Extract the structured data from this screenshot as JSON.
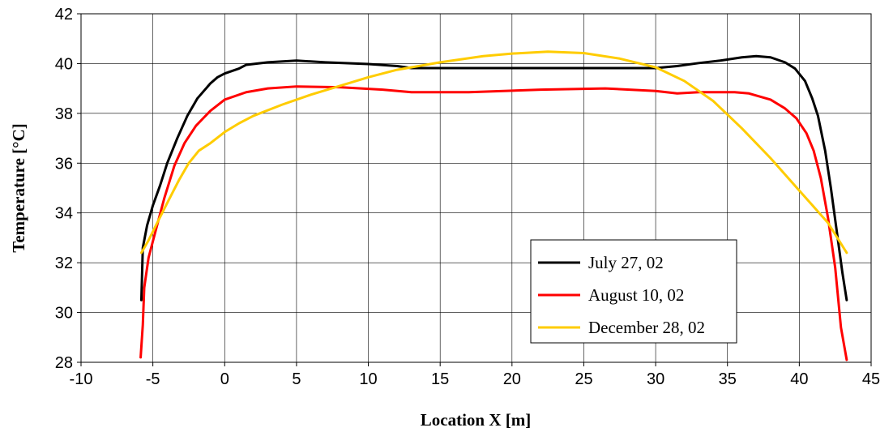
{
  "chart_data": {
    "type": "line",
    "xlabel": "Location X [m]",
    "ylabel": "Temperature [°C]",
    "xlim": [
      -10,
      45
    ],
    "ylim": [
      28,
      42
    ],
    "x_ticks": [
      -10,
      -5,
      0,
      5,
      10,
      15,
      20,
      25,
      30,
      35,
      40,
      45
    ],
    "y_ticks": [
      28,
      30,
      32,
      34,
      36,
      38,
      40,
      42
    ],
    "grid": true,
    "legend_position": "lower-right",
    "series": [
      {
        "name": "July 27, 02",
        "color": "#000000",
        "points": [
          [
            -5.8,
            30.5
          ],
          [
            -5.7,
            32.6
          ],
          [
            -5.4,
            33.5
          ],
          [
            -5.0,
            34.3
          ],
          [
            -4.5,
            35.1
          ],
          [
            -4.0,
            36.0
          ],
          [
            -3.3,
            37.0
          ],
          [
            -2.6,
            37.9
          ],
          [
            -1.9,
            38.6
          ],
          [
            -1.0,
            39.2
          ],
          [
            -0.5,
            39.45
          ],
          [
            0,
            39.6
          ],
          [
            1.0,
            39.8
          ],
          [
            1.5,
            39.95
          ],
          [
            3.0,
            40.05
          ],
          [
            5.0,
            40.12
          ],
          [
            7.0,
            40.05
          ],
          [
            10.0,
            39.98
          ],
          [
            12.0,
            39.9
          ],
          [
            13.0,
            39.82
          ],
          [
            20.0,
            39.82
          ],
          [
            25.0,
            39.82
          ],
          [
            30.0,
            39.82
          ],
          [
            31.5,
            39.9
          ],
          [
            33.0,
            40.02
          ],
          [
            34.5,
            40.12
          ],
          [
            36.0,
            40.25
          ],
          [
            37.0,
            40.3
          ],
          [
            38.0,
            40.25
          ],
          [
            39.0,
            40.05
          ],
          [
            39.7,
            39.8
          ],
          [
            40.4,
            39.3
          ],
          [
            40.9,
            38.6
          ],
          [
            41.3,
            37.9
          ],
          [
            41.8,
            36.5
          ],
          [
            42.2,
            35.0
          ],
          [
            42.6,
            33.3
          ],
          [
            43.0,
            31.6
          ],
          [
            43.3,
            30.5
          ]
        ]
      },
      {
        "name": "August 10, 02",
        "color": "#ff0000",
        "points": [
          [
            -5.85,
            28.2
          ],
          [
            -5.7,
            29.5
          ],
          [
            -5.6,
            31.0
          ],
          [
            -5.3,
            32.2
          ],
          [
            -4.8,
            33.3
          ],
          [
            -4.2,
            34.6
          ],
          [
            -3.5,
            35.9
          ],
          [
            -2.8,
            36.8
          ],
          [
            -2.0,
            37.5
          ],
          [
            -1.0,
            38.1
          ],
          [
            0,
            38.55
          ],
          [
            1.5,
            38.85
          ],
          [
            3.0,
            39.0
          ],
          [
            5.0,
            39.08
          ],
          [
            8.0,
            39.05
          ],
          [
            11.0,
            38.95
          ],
          [
            13.0,
            38.85
          ],
          [
            17.0,
            38.85
          ],
          [
            22.0,
            38.95
          ],
          [
            26.5,
            39.0
          ],
          [
            30.0,
            38.9
          ],
          [
            31.5,
            38.8
          ],
          [
            33.0,
            38.85
          ],
          [
            35.5,
            38.85
          ],
          [
            36.5,
            38.8
          ],
          [
            38.0,
            38.55
          ],
          [
            39.0,
            38.2
          ],
          [
            39.8,
            37.8
          ],
          [
            40.5,
            37.2
          ],
          [
            41.0,
            36.5
          ],
          [
            41.5,
            35.4
          ],
          [
            42.0,
            33.8
          ],
          [
            42.5,
            31.8
          ],
          [
            42.9,
            29.4
          ],
          [
            43.3,
            28.1
          ]
        ]
      },
      {
        "name": "December 28, 02",
        "color": "#ffcc00",
        "points": [
          [
            -5.8,
            32.4
          ],
          [
            -5.3,
            32.9
          ],
          [
            -4.7,
            33.6
          ],
          [
            -4.0,
            34.4
          ],
          [
            -3.2,
            35.3
          ],
          [
            -2.5,
            36.0
          ],
          [
            -1.8,
            36.5
          ],
          [
            -1.0,
            36.8
          ],
          [
            0,
            37.25
          ],
          [
            1.0,
            37.6
          ],
          [
            2.0,
            37.9
          ],
          [
            4.0,
            38.35
          ],
          [
            6.0,
            38.75
          ],
          [
            8.0,
            39.1
          ],
          [
            10.0,
            39.45
          ],
          [
            12.0,
            39.75
          ],
          [
            15.0,
            40.05
          ],
          [
            18.0,
            40.3
          ],
          [
            20.0,
            40.4
          ],
          [
            22.5,
            40.48
          ],
          [
            25.0,
            40.42
          ],
          [
            27.5,
            40.2
          ],
          [
            30.0,
            39.85
          ],
          [
            32.0,
            39.3
          ],
          [
            34.0,
            38.5
          ],
          [
            36.0,
            37.4
          ],
          [
            38.0,
            36.2
          ],
          [
            40.0,
            34.9
          ],
          [
            42.0,
            33.6
          ],
          [
            43.3,
            32.4
          ]
        ]
      }
    ]
  }
}
